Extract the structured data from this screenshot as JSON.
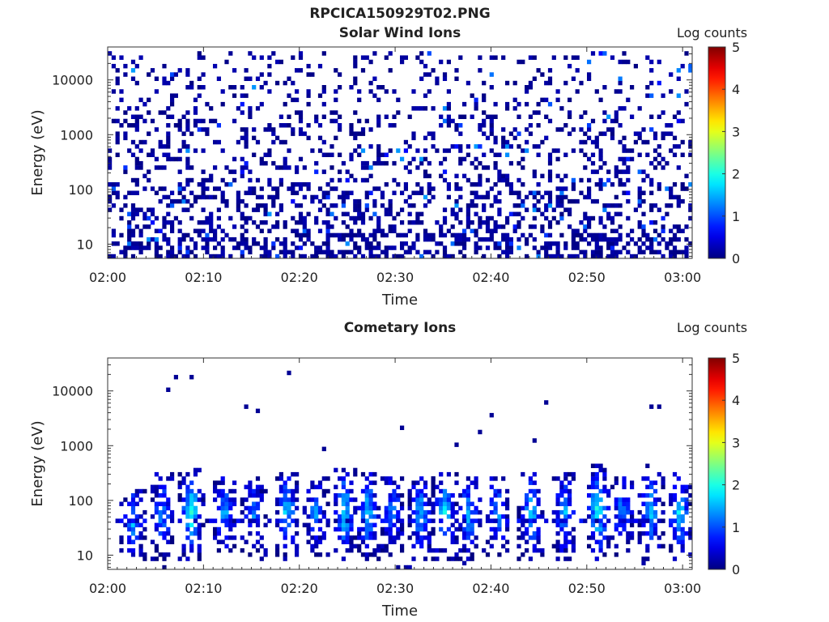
{
  "figure": {
    "title": "RPCICA150929T02.PNG"
  },
  "chart_data": [
    {
      "type": "heatmap",
      "title": "Solar Wind Ions",
      "xlabel": "Time",
      "ylabel": "Energy (eV)",
      "x_ticks": [
        "02:00",
        "02:10",
        "02:20",
        "02:30",
        "02:40",
        "02:50",
        "03:00"
      ],
      "xlim": [
        "02:00",
        "03:01"
      ],
      "y_scale": "log",
      "y_ticks": [
        10,
        100,
        1000,
        10000
      ],
      "y_tick_labels": [
        "10",
        "100",
        "1000",
        "10000"
      ],
      "ylim": [
        5.5,
        40000
      ],
      "colorbar": {
        "label": "Log counts",
        "range": [
          0,
          5
        ],
        "ticks": [
          "0",
          "1",
          "2",
          "3",
          "4",
          "5"
        ],
        "colormap": "jet"
      },
      "pattern": {
        "description_values": "sparse single-count pixels across all energies, denser below 100 eV",
        "peak_log_counts": 1.6,
        "typical_log_counts": 0.1
      }
    },
    {
      "type": "heatmap",
      "title": "Cometary Ions",
      "xlabel": "Time",
      "ylabel": "Energy (eV)",
      "x_ticks": [
        "02:00",
        "02:10",
        "02:20",
        "02:30",
        "02:40",
        "02:50",
        "03:00"
      ],
      "xlim": [
        "02:00",
        "03:01"
      ],
      "y_scale": "log",
      "y_ticks": [
        10,
        100,
        1000,
        10000
      ],
      "y_tick_labels": [
        "10",
        "100",
        "1000",
        "10000"
      ],
      "ylim": [
        5.5,
        40000
      ],
      "colorbar": {
        "label": "Log counts",
        "range": [
          0,
          5
        ],
        "ticks": [
          "0",
          "1",
          "2",
          "3",
          "4",
          "5"
        ],
        "colormap": "jet"
      },
      "bursts": [
        {
          "t": "02:02.5",
          "emin": 6,
          "emax": 160,
          "peak": 1.6
        },
        {
          "t": "02:05.5",
          "emin": 6,
          "emax": 300,
          "peak": 1.4
        },
        {
          "t": "02:08.5",
          "emin": 6,
          "emax": 350,
          "peak": 2.2
        },
        {
          "t": "02:12",
          "emin": 8,
          "emax": 250,
          "peak": 1.5
        },
        {
          "t": "02:15",
          "emin": 8,
          "emax": 250,
          "peak": 1.3
        },
        {
          "t": "02:18.5",
          "emin": 8,
          "emax": 280,
          "peak": 1.8
        },
        {
          "t": "02:21.5",
          "emin": 8,
          "emax": 250,
          "peak": 1.4
        },
        {
          "t": "02:24.5",
          "emin": 6,
          "emax": 380,
          "peak": 2.0
        },
        {
          "t": "02:27",
          "emin": 6,
          "emax": 320,
          "peak": 1.8
        },
        {
          "t": "02:29.5",
          "emin": 8,
          "emax": 250,
          "peak": 1.4
        },
        {
          "t": "02:32.5",
          "emin": 6,
          "emax": 300,
          "peak": 1.7
        },
        {
          "t": "02:35",
          "emin": 6,
          "emax": 320,
          "peak": 1.8
        },
        {
          "t": "02:37.5",
          "emin": 6,
          "emax": 280,
          "peak": 1.6
        },
        {
          "t": "02:40.5",
          "emin": 8,
          "emax": 260,
          "peak": 1.5
        },
        {
          "t": "02:44",
          "emin": 6,
          "emax": 300,
          "peak": 1.9
        },
        {
          "t": "02:47.5",
          "emin": 6,
          "emax": 280,
          "peak": 1.6
        },
        {
          "t": "02:51",
          "emin": 6,
          "emax": 400,
          "peak": 2.3
        },
        {
          "t": "02:53.5",
          "emin": 8,
          "emax": 250,
          "peak": 1.4
        },
        {
          "t": "02:56.5",
          "emin": 6,
          "emax": 300,
          "peak": 1.7
        },
        {
          "t": "02:59.5",
          "emin": 6,
          "emax": 280,
          "peak": 1.9
        }
      ]
    }
  ]
}
